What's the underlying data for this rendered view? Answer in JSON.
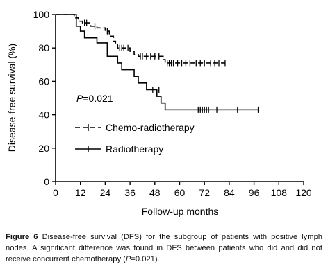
{
  "chart_data": {
    "type": "line",
    "subtype": "kaplan-meier step",
    "xlabel": "Follow-up months",
    "ylabel": "Disease-free survival (%)",
    "xlim": [
      0,
      120
    ],
    "ylim": [
      0,
      100
    ],
    "xticks": [
      0,
      12,
      24,
      36,
      48,
      60,
      72,
      84,
      96,
      108,
      120
    ],
    "yticks": [
      0,
      20,
      40,
      60,
      80,
      100
    ],
    "grid": false,
    "legend_position": "lower-left",
    "annotation": {
      "italic": "P",
      "rest": "=0.021"
    },
    "series": [
      {
        "name": "Chemo-radiotherapy",
        "line_style": "dashed",
        "steps": [
          [
            0,
            100
          ],
          [
            9,
            100
          ],
          [
            9,
            98
          ],
          [
            11,
            98
          ],
          [
            11,
            96
          ],
          [
            13,
            96
          ],
          [
            13,
            95
          ],
          [
            17,
            95
          ],
          [
            17,
            93
          ],
          [
            20,
            93
          ],
          [
            20,
            92
          ],
          [
            24,
            92
          ],
          [
            24,
            90
          ],
          [
            26,
            90
          ],
          [
            26,
            87
          ],
          [
            28,
            87
          ],
          [
            28,
            84
          ],
          [
            29,
            84
          ],
          [
            29,
            82
          ],
          [
            30,
            82
          ],
          [
            30,
            80
          ],
          [
            36,
            80
          ],
          [
            36,
            78
          ],
          [
            38,
            78
          ],
          [
            38,
            76
          ],
          [
            40,
            76
          ],
          [
            40,
            75
          ],
          [
            52,
            75
          ],
          [
            52,
            73
          ],
          [
            53,
            73
          ],
          [
            53,
            71
          ],
          [
            82,
            71
          ]
        ],
        "censor_marks": [
          [
            14,
            95
          ],
          [
            15,
            95
          ],
          [
            19,
            93
          ],
          [
            25,
            90
          ],
          [
            31,
            80
          ],
          [
            32,
            80
          ],
          [
            33,
            80
          ],
          [
            35,
            80
          ],
          [
            41,
            75
          ],
          [
            42,
            75
          ],
          [
            44,
            75
          ],
          [
            46,
            75
          ],
          [
            48,
            75
          ],
          [
            50,
            75
          ],
          [
            54,
            71
          ],
          [
            55,
            71
          ],
          [
            56,
            71
          ],
          [
            57,
            71
          ],
          [
            59,
            71
          ],
          [
            61,
            71
          ],
          [
            63,
            71
          ],
          [
            65,
            71
          ],
          [
            68,
            71
          ],
          [
            70,
            71
          ],
          [
            72,
            71
          ],
          [
            75,
            71
          ],
          [
            77,
            71
          ],
          [
            79,
            71
          ],
          [
            82,
            71
          ]
        ]
      },
      {
        "name": "Radiotherapy",
        "line_style": "solid",
        "steps": [
          [
            0,
            100
          ],
          [
            10,
            100
          ],
          [
            10,
            93
          ],
          [
            12,
            93
          ],
          [
            12,
            90
          ],
          [
            14,
            90
          ],
          [
            14,
            86
          ],
          [
            20,
            86
          ],
          [
            20,
            83
          ],
          [
            25,
            83
          ],
          [
            25,
            75
          ],
          [
            30,
            75
          ],
          [
            30,
            71
          ],
          [
            32,
            71
          ],
          [
            32,
            67
          ],
          [
            38,
            67
          ],
          [
            38,
            63
          ],
          [
            40,
            63
          ],
          [
            40,
            59
          ],
          [
            44,
            59
          ],
          [
            44,
            55
          ],
          [
            49,
            55
          ],
          [
            49,
            51
          ],
          [
            51,
            51
          ],
          [
            51,
            47
          ],
          [
            53,
            47
          ],
          [
            53,
            43
          ],
          [
            98,
            43
          ]
        ],
        "censor_marks": [
          [
            47,
            55
          ],
          [
            50,
            55
          ],
          [
            69,
            43
          ],
          [
            70,
            43
          ],
          [
            71,
            43
          ],
          [
            72,
            43
          ],
          [
            73,
            43
          ],
          [
            74,
            43
          ],
          [
            78,
            43
          ],
          [
            88,
            43
          ],
          [
            98,
            43
          ]
        ]
      }
    ]
  },
  "caption": {
    "label": "Figure 6",
    "text": "Disease-free survival (DFS) for the subgroup of patients with positive lymph nodes. A significant difference was found in DFS between patients who did and did not receive concurrent chemotherapy (",
    "p_italic": "P",
    "p_rest": "=0.021)."
  }
}
